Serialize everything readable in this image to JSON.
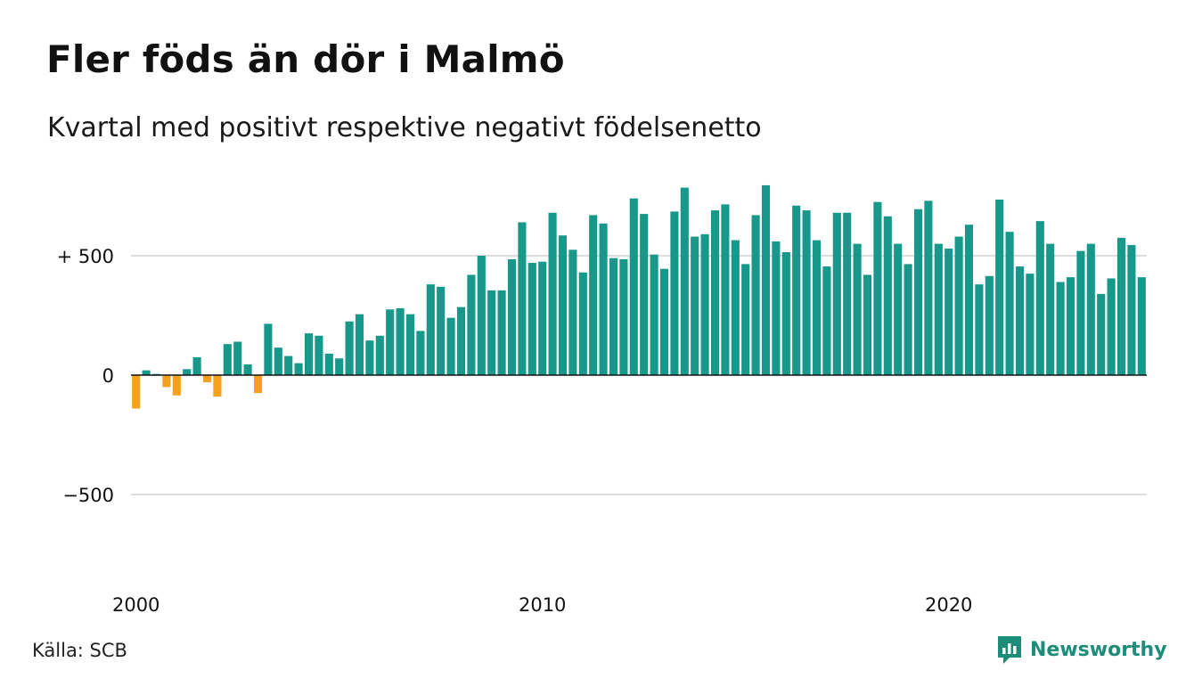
{
  "title": "Fler föds än dör i Malmö",
  "subtitle": "Kvartal med positivt respektive negativt födelsenetto",
  "source": "Källa: SCB",
  "brand": {
    "name": "Newsworthy",
    "color": "#1d8c78",
    "icon": "newsworthy-logo-icon"
  },
  "colors": {
    "positive": "#17988a",
    "negative": "#f5a11c",
    "grid": "#dddddd",
    "baseline": "#111111"
  },
  "chart_data": {
    "type": "bar",
    "title": "Fler föds än dör i Malmö",
    "subtitle": "Kvartal med positivt respektive negativt födelsenetto",
    "x_start_year": 2000,
    "periods_per_year": 4,
    "x_tick_labels": [
      "2000",
      "2010",
      "2020"
    ],
    "y_ticks": [
      {
        "value": 500,
        "label": "+ 500"
      },
      {
        "value": 0,
        "label": "0"
      },
      {
        "value": -500,
        "label": "−500"
      }
    ],
    "ylim": [
      -750,
      880
    ],
    "grid": true,
    "values": [
      -140,
      20,
      5,
      -50,
      -85,
      25,
      75,
      -30,
      -90,
      130,
      140,
      45,
      -75,
      215,
      115,
      80,
      50,
      175,
      165,
      90,
      70,
      225,
      255,
      145,
      165,
      275,
      280,
      255,
      185,
      380,
      370,
      240,
      285,
      420,
      500,
      355,
      355,
      485,
      640,
      470,
      475,
      680,
      585,
      525,
      430,
      670,
      635,
      490,
      485,
      740,
      675,
      505,
      445,
      685,
      785,
      580,
      590,
      690,
      715,
      565,
      465,
      670,
      795,
      560,
      515,
      710,
      690,
      565,
      455,
      680,
      680,
      550,
      420,
      725,
      665,
      550,
      465,
      695,
      730,
      550,
      530,
      580,
      630,
      380,
      415,
      735,
      600,
      455,
      425,
      645,
      550,
      390,
      410,
      520,
      550,
      340,
      405,
      575,
      545,
      410
    ]
  }
}
